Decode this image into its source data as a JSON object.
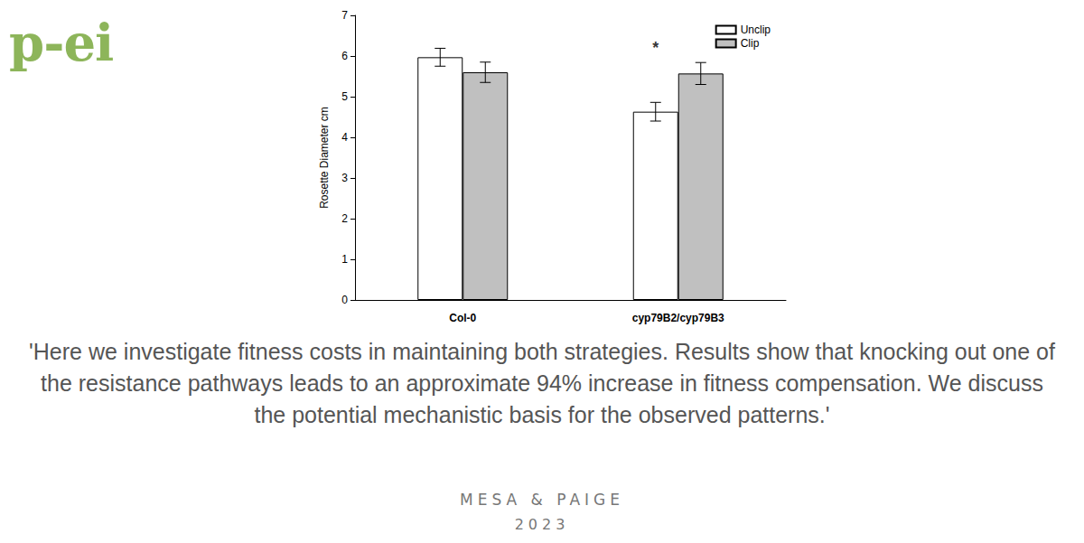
{
  "chart_data": {
    "type": "bar",
    "y_label": "Rosette Diameter cm",
    "categories": [
      "Col-0",
      "cyp79B2/cyp79B3"
    ],
    "series": [
      {
        "name": "Unclip",
        "color": "#ffffff",
        "values": [
          5.97,
          4.63
        ],
        "errors": [
          0.22,
          0.23
        ]
      },
      {
        "name": "Clip",
        "color": "#c0c0c0",
        "values": [
          5.6,
          5.57
        ],
        "errors": [
          0.25,
          0.27
        ]
      }
    ],
    "annotations": [
      {
        "text": "*",
        "category": "cyp79B2/cyp79B3",
        "series": "Unclip",
        "y": 6.2
      }
    ],
    "ylim": [
      0,
      7
    ],
    "yticks": [
      0,
      1,
      2,
      3,
      4,
      5,
      6,
      7
    ],
    "grid": false,
    "legend": "top-right"
  },
  "logo": "p-ei",
  "quote": "'Here we investigate fitness costs in maintaining both strategies. Results show that knocking out one of the resistance pathways leads to an approximate 94% increase in fitness compensation. We discuss the potential mechanistic basis for the observed patterns.'",
  "authors": "MESA & PAIGE",
  "year": "2023"
}
